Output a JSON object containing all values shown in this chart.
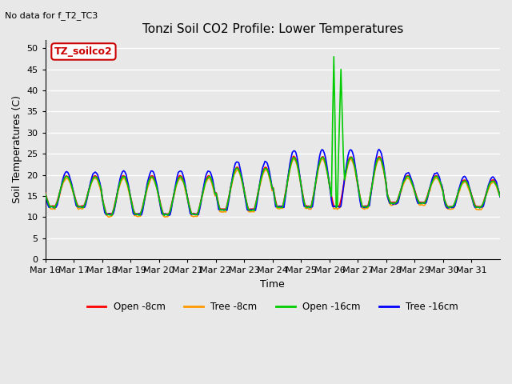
{
  "title": "Tonzi Soil CO2 Profile: Lower Temperatures",
  "subtitle": "No data for f_T2_TC3",
  "ylabel": "Soil Temperatures (C)",
  "xlabel": "Time",
  "ylim": [
    0,
    52
  ],
  "yticks": [
    0,
    5,
    10,
    15,
    20,
    25,
    30,
    35,
    40,
    45,
    50
  ],
  "x_tick_labels": [
    "Mar 16",
    "Mar 17",
    "Mar 18",
    "Mar 19",
    "Mar 20",
    "Mar 21",
    "Mar 22",
    "Mar 23",
    "Mar 24",
    "Mar 25",
    "Mar 26",
    "Mar 27",
    "Mar 28",
    "Mar 29",
    "Mar 30",
    "Mar 31"
  ],
  "legend_labels": [
    "Open -8cm",
    "Tree -8cm",
    "Open -16cm",
    "Tree -16cm"
  ],
  "legend_colors": [
    "#ff0000",
    "#ff9900",
    "#00cc00",
    "#0000ff"
  ],
  "watermark_text": "TZ_soilco2",
  "watermark_color": "#cc0000",
  "background_color": "#e8e8e8",
  "grid_color": "#ffffff",
  "line_width": 1.2
}
